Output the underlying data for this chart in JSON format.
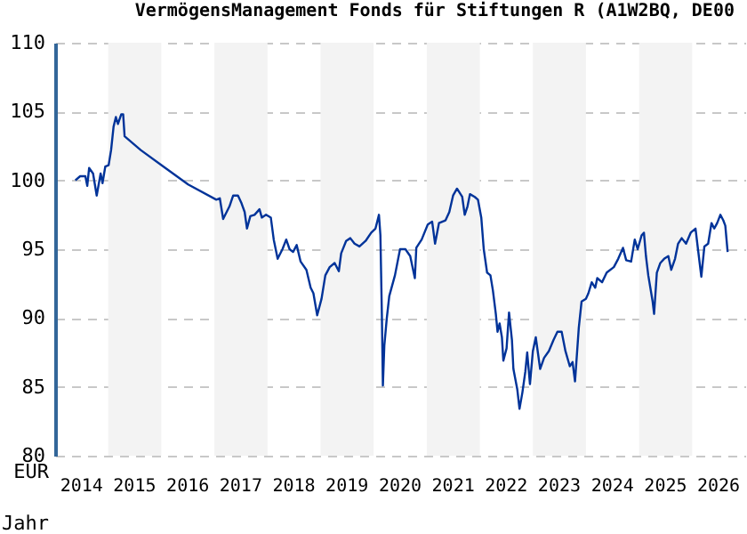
{
  "chart_data": {
    "type": "line",
    "title": "VermögensManagement Fonds für Stiftungen R (A1W2BQ, DE00",
    "xlabel": "Jahr",
    "ylabel": "EUR",
    "xlim": [
      "2014-01-01",
      "2027-01-01"
    ],
    "ylim": [
      80,
      110
    ],
    "yticks": [
      80,
      85,
      90,
      95,
      100,
      105,
      110
    ],
    "xticks": [
      {
        "value": "2014-07-02",
        "label": "2014"
      },
      {
        "value": "2015-07-02",
        "label": "2015"
      },
      {
        "value": "2016-07-02",
        "label": "2016"
      },
      {
        "value": "2017-07-02",
        "label": "2017"
      },
      {
        "value": "2018-07-02",
        "label": "2018"
      },
      {
        "value": "2019-07-02",
        "label": "2019"
      },
      {
        "value": "2020-07-02",
        "label": "2020"
      },
      {
        "value": "2021-07-02",
        "label": "2021"
      },
      {
        "value": "2022-07-02",
        "label": "2022"
      },
      {
        "value": "2023-07-02",
        "label": "2023"
      },
      {
        "value": "2024-07-02",
        "label": "2024"
      },
      {
        "value": "2025-07-02",
        "label": "2025"
      },
      {
        "value": "2026-07-02",
        "label": "2026"
      }
    ],
    "grid": "y",
    "bands": [
      {
        "axis": "x",
        "from": "2015-01-01",
        "to": "2016-01-01",
        "color": "#f3f3f3"
      },
      {
        "axis": "x",
        "from": "2017-01-01",
        "to": "2018-01-01",
        "color": "#f3f3f3"
      },
      {
        "axis": "x",
        "from": "2019-01-01",
        "to": "2020-01-01",
        "color": "#f3f3f3"
      },
      {
        "axis": "x",
        "from": "2021-01-01",
        "to": "2022-01-01",
        "color": "#f3f3f3"
      },
      {
        "axis": "x",
        "from": "2023-01-01",
        "to": "2024-01-01",
        "color": "#f3f3f3"
      },
      {
        "axis": "x",
        "from": "2025-01-01",
        "to": "2026-01-01",
        "color": "#f3f3f3"
      }
    ],
    "series": [
      {
        "color": "#003399",
        "x": [
          "2014-05-20",
          "2014-06-22",
          "2014-07-28",
          "2014-08-10",
          "2014-08-23",
          "2014-09-19",
          "2014-10-14",
          "2014-11-10",
          "2014-11-23",
          "2014-12-12",
          "2015-01-04",
          "2015-01-21",
          "2015-02-07",
          "2015-02-23",
          "2015-03-09",
          "2015-04-01",
          "2015-04-14",
          "2015-04-24",
          "2015-08-13",
          "2016-01-04",
          "2016-07-04",
          "2017-01-14",
          "2017-02-07",
          "2017-03-02",
          "2017-04-14",
          "2017-05-10",
          "2017-06-12",
          "2017-07-04",
          "2017-07-28",
          "2017-08-13",
          "2017-09-05",
          "2017-10-04",
          "2017-11-07",
          "2017-11-23",
          "2017-12-22",
          "2018-01-24",
          "2018-02-13",
          "2018-03-12",
          "2018-04-14",
          "2018-05-10",
          "2018-06-02",
          "2018-06-26",
          "2018-07-21",
          "2018-08-17",
          "2018-09-26",
          "2018-10-25",
          "2018-11-13",
          "2018-12-09",
          "2019-01-08",
          "2019-02-03",
          "2019-03-05",
          "2019-04-08",
          "2019-05-07",
          "2019-05-23",
          "2019-06-26",
          "2019-07-25",
          "2019-08-23",
          "2019-09-26",
          "2019-11-07",
          "2019-12-16",
          "2020-01-14",
          "2020-02-07",
          "2020-02-17",
          "2020-02-27",
          "2020-03-05",
          "2020-03-15",
          "2020-04-01",
          "2020-04-18",
          "2020-05-27",
          "2020-07-01",
          "2020-08-07",
          "2020-09-09",
          "2020-10-11",
          "2020-10-21",
          "2020-11-27",
          "2021-01-08",
          "2021-02-07",
          "2021-02-27",
          "2021-03-26",
          "2021-05-10",
          "2021-06-05",
          "2021-07-01",
          "2021-07-28",
          "2021-09-02",
          "2021-09-19",
          "2021-10-08",
          "2021-10-25",
          "2021-11-27",
          "2021-12-19",
          "2022-01-11",
          "2022-01-28",
          "2022-02-20",
          "2022-03-15",
          "2022-04-01",
          "2022-04-21",
          "2022-05-03",
          "2022-05-17",
          "2022-06-02",
          "2022-06-12",
          "2022-07-04",
          "2022-07-21",
          "2022-08-10",
          "2022-08-20",
          "2022-09-16",
          "2022-10-01",
          "2022-10-21",
          "2022-11-10",
          "2022-11-23",
          "2022-12-12",
          "2023-01-01",
          "2023-01-21",
          "2023-02-20",
          "2023-03-19",
          "2023-04-21",
          "2023-05-23",
          "2023-06-19",
          "2023-07-18",
          "2023-08-13",
          "2023-09-12",
          "2023-10-01",
          "2023-10-18",
          "2023-11-13",
          "2023-12-02",
          "2024-01-01",
          "2024-01-18",
          "2024-02-10",
          "2024-03-05",
          "2024-03-19",
          "2024-04-21",
          "2024-05-23",
          "2024-07-11",
          "2024-08-10",
          "2024-09-12",
          "2024-10-04",
          "2024-11-07",
          "2024-12-02",
          "2024-12-22",
          "2025-01-18",
          "2025-02-03",
          "2025-02-17",
          "2025-03-05",
          "2025-04-04",
          "2025-04-14",
          "2025-05-03",
          "2025-05-27",
          "2025-06-22",
          "2025-07-21",
          "2025-08-10",
          "2025-09-05",
          "2025-09-26",
          "2025-10-21",
          "2025-11-20",
          "2025-12-22",
          "2026-01-24",
          "2026-02-10",
          "2026-03-05",
          "2026-03-26",
          "2026-04-21",
          "2026-05-14",
          "2026-06-02",
          "2026-06-22",
          "2026-07-14",
          "2026-08-03",
          "2026-08-17",
          "2026-09-02"
        ],
        "values": [
          100.0,
          100.3,
          100.3,
          99.6,
          100.9,
          100.5,
          98.9,
          100.5,
          99.8,
          101.0,
          101.1,
          102.2,
          103.9,
          104.6,
          104.1,
          104.8,
          104.8,
          103.2,
          102.2,
          101.1,
          99.7,
          98.6,
          98.7,
          97.2,
          98.1,
          98.9,
          98.9,
          98.4,
          97.7,
          96.5,
          97.4,
          97.5,
          97.9,
          97.3,
          97.5,
          97.3,
          95.7,
          94.3,
          95.0,
          95.7,
          95.0,
          94.8,
          95.3,
          94.1,
          93.5,
          92.2,
          91.8,
          90.2,
          91.4,
          93.1,
          93.7,
          94.0,
          93.4,
          94.7,
          95.6,
          95.8,
          95.4,
          95.2,
          95.6,
          96.2,
          96.5,
          97.5,
          96.0,
          90.3,
          85.1,
          88.0,
          90.0,
          91.6,
          93.1,
          95.0,
          95.0,
          94.5,
          92.9,
          95.1,
          95.7,
          96.8,
          97.0,
          95.4,
          96.9,
          97.1,
          97.7,
          98.9,
          99.4,
          98.8,
          97.5,
          98.1,
          99.0,
          98.8,
          98.6,
          97.3,
          95.0,
          93.3,
          93.1,
          92.0,
          90.3,
          89.0,
          89.6,
          88.6,
          86.9,
          87.8,
          90.4,
          88.4,
          86.3,
          84.8,
          83.4,
          84.6,
          86.1,
          87.5,
          85.2,
          87.6,
          88.6,
          86.3,
          87.1,
          87.6,
          88.4,
          89.0,
          89.0,
          87.6,
          86.5,
          86.8,
          85.4,
          89.3,
          91.2,
          91.4,
          91.8,
          92.6,
          92.2,
          92.9,
          92.6,
          93.3,
          93.7,
          94.3,
          95.1,
          94.2,
          94.1,
          95.7,
          95.0,
          96.0,
          96.2,
          94.5,
          93.1,
          91.2,
          90.3,
          93.3,
          94.0,
          94.3,
          94.5,
          93.5,
          94.3,
          95.4,
          95.8,
          95.4,
          96.2,
          96.5,
          95.0,
          93.0,
          95.2,
          95.4,
          96.9,
          96.5,
          96.9,
          97.5,
          97.1,
          96.7,
          94.8
        ]
      }
    ]
  }
}
